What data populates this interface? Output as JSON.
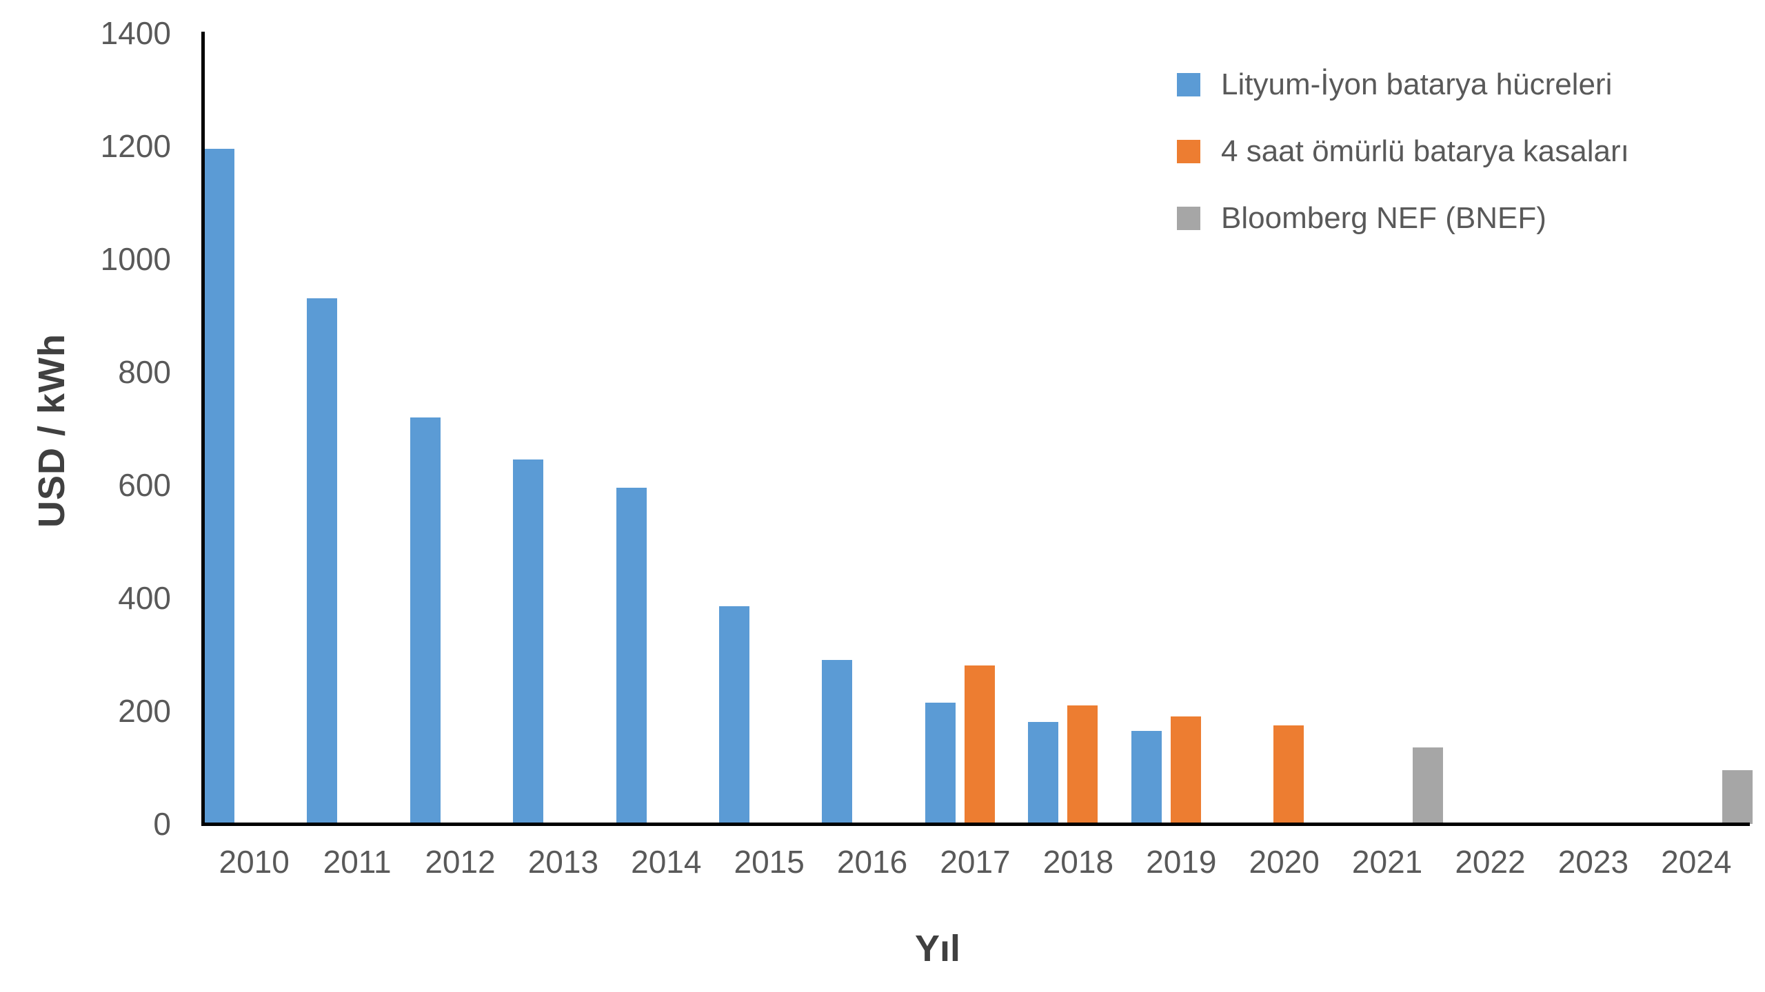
{
  "chart_data": {
    "type": "bar",
    "title": "",
    "xlabel": "Yıl",
    "ylabel": "USD / kWh",
    "categories": [
      "2010",
      "2011",
      "2012",
      "2013",
      "2014",
      "2015",
      "2016",
      "2017",
      "2018",
      "2019",
      "2020",
      "2021",
      "2022",
      "2023",
      "2024"
    ],
    "series": [
      {
        "name": "Lityum-İyon batarya hücreleri",
        "color": "#5B9BD5",
        "values": [
          1195,
          930,
          720,
          645,
          595,
          385,
          290,
          215,
          180,
          165,
          null,
          null,
          null,
          null,
          null
        ]
      },
      {
        "name": "4 saat ömürlü batarya kasaları",
        "color": "#ED7D31",
        "values": [
          null,
          null,
          null,
          null,
          null,
          null,
          null,
          280,
          210,
          190,
          175,
          null,
          null,
          null,
          null
        ]
      },
      {
        "name": "Bloomberg NEF (BNEF)",
        "color": "#A6A6A6",
        "values": [
          null,
          null,
          null,
          null,
          null,
          null,
          null,
          null,
          null,
          null,
          null,
          135,
          null,
          null,
          95
        ]
      }
    ],
    "y_ticks": [
      0,
      200,
      400,
      600,
      800,
      1000,
      1200,
      1400
    ],
    "ylim": [
      0,
      1400
    ],
    "grid": false,
    "legend_position": "top-right",
    "axis_color": "#000000",
    "tick_label_color": "#595959",
    "axis_title_color": "#404040"
  }
}
